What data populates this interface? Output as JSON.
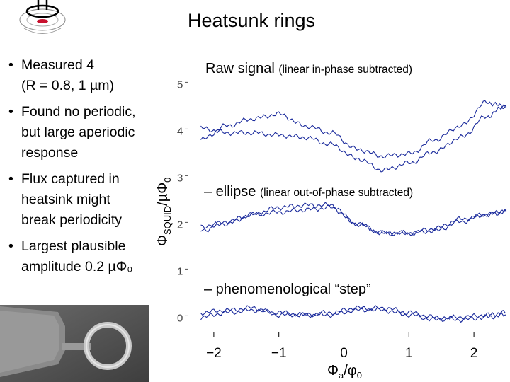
{
  "slide": {
    "title": "Heatsunk rings",
    "bullets": [
      {
        "text": "Measured 4\n(R = 0.8, 1 µm)"
      },
      {
        "text": "Found no periodic,\nbut large aperiodic\nresponse"
      },
      {
        "text": "Flux captured in\nheatsink might\nbreak periodicity"
      },
      {
        "text": "Largest plausible\namplitude 0.2 µΦ₀"
      }
    ],
    "bullet_glyph": "•"
  },
  "annotations": {
    "raw": {
      "main": "Raw signal",
      "sub": "(linear in-phase subtracted)"
    },
    "ellipse": {
      "main": "– ellipse",
      "sub": "(linear out-of-phase subtracted)"
    },
    "step": {
      "main": "– phenomenological “step”"
    }
  },
  "colors": {
    "trace": "#1a2a9c",
    "axis": "#000000"
  },
  "chart_data": {
    "type": "line",
    "xlabel": "Φa/φ0",
    "ylabel": "ΦSQUID/µΦ0",
    "xlim": [
      -2.5,
      2.5
    ],
    "ylim": [
      -0.1,
      5.4
    ],
    "xticks": [
      {
        "value": -2,
        "label": "−2"
      },
      {
        "value": -1,
        "label": "−1"
      },
      {
        "value": 0,
        "label": "0"
      },
      {
        "value": 1,
        "label": "1"
      },
      {
        "value": 2,
        "label": "2"
      }
    ],
    "yticks": [
      {
        "value": 0,
        "label": "0"
      },
      {
        "value": 1,
        "label": "1"
      },
      {
        "value": 2,
        "label": "2"
      },
      {
        "value": 3,
        "label": "3"
      },
      {
        "value": 4,
        "label": "4"
      },
      {
        "value": 5,
        "label": "5"
      }
    ],
    "series": [
      {
        "x": [
          -2.2,
          -1.8,
          -1.4,
          -1.0,
          -0.6,
          -0.2,
          0.2,
          0.6,
          1.0,
          1.4,
          1.8,
          2.2,
          2.5
        ],
        "y": [
          3.8,
          4.1,
          4.25,
          4.35,
          4.1,
          3.95,
          3.6,
          3.45,
          3.5,
          3.8,
          4.1,
          4.6,
          4.5
        ]
      },
      {
        "x": [
          -2.2,
          -1.8,
          -1.4,
          -1.0,
          -0.6,
          -0.2,
          0.2,
          0.6,
          1.0,
          1.4,
          1.8,
          2.2,
          2.5
        ],
        "y": [
          4.05,
          3.95,
          3.95,
          3.9,
          3.85,
          3.7,
          3.4,
          3.15,
          3.3,
          3.55,
          3.85,
          4.3,
          4.55
        ]
      },
      {
        "x": [
          -2.2,
          -1.8,
          -1.4,
          -1.0,
          -0.6,
          -0.2,
          0.2,
          0.6,
          1.0,
          1.4,
          1.8,
          2.2,
          2.5
        ],
        "y": [
          1.85,
          2.05,
          2.2,
          2.25,
          2.3,
          2.35,
          2.0,
          1.8,
          1.8,
          1.9,
          2.1,
          2.2,
          2.3
        ]
      },
      {
        "x": [
          -2.2,
          -1.8,
          -1.4,
          -1.0,
          -0.6,
          -0.2,
          0.2,
          0.6,
          1.0,
          1.4,
          1.8,
          2.2,
          2.5
        ],
        "y": [
          1.95,
          2.0,
          2.2,
          2.35,
          2.4,
          2.4,
          2.0,
          1.8,
          1.8,
          1.85,
          2.05,
          2.2,
          2.25
        ]
      },
      {
        "x": [
          -2.2,
          -1.8,
          -1.4,
          -1.0,
          -0.6,
          -0.2,
          0.2,
          0.6,
          1.0,
          1.4,
          1.8,
          2.2,
          2.5
        ],
        "y": [
          0.1,
          0.15,
          0.2,
          0.05,
          0.05,
          0.1,
          0.2,
          0.15,
          0.05,
          -0.05,
          0.0,
          0.05,
          0.1
        ]
      },
      {
        "x": [
          -2.2,
          -1.8,
          -1.4,
          -1.0,
          -0.6,
          -0.2,
          0.2,
          0.6,
          1.0,
          1.4,
          1.8,
          2.2,
          2.5
        ],
        "y": [
          0.0,
          0.1,
          0.15,
          0.1,
          0.05,
          0.05,
          0.15,
          0.2,
          0.1,
          0.0,
          -0.05,
          0.0,
          0.05
        ]
      }
    ]
  }
}
